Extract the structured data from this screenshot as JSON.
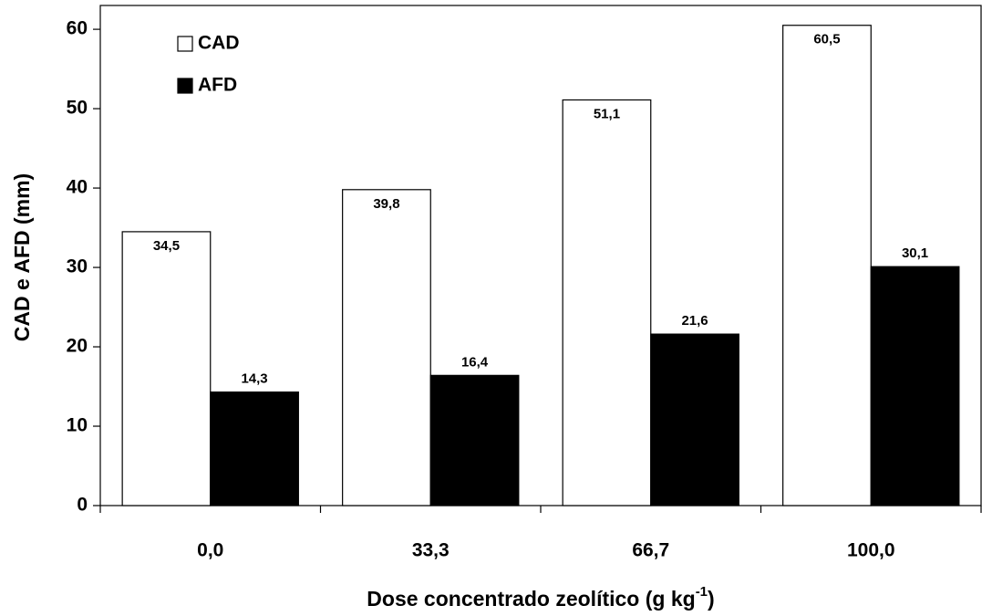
{
  "chart_data": {
    "type": "bar",
    "x_label": {
      "main": "Dose concentrado zeolítico (g kg",
      "superscript": "-1",
      "end": ")"
    },
    "y_label": "CAD e AFD (mm)",
    "categories": [
      "0,0",
      "33,3",
      "66,7",
      "100,0"
    ],
    "series": [
      {
        "name": "CAD",
        "color": "#ffffff",
        "values": [
          34.5,
          39.8,
          51.1,
          60.5
        ],
        "value_labels": [
          "34,5",
          "39,8",
          "51,1",
          "60,5"
        ]
      },
      {
        "name": "AFD",
        "color": "#000000",
        "values": [
          14.3,
          16.4,
          21.6,
          30.1
        ],
        "value_labels": [
          "14,3",
          "16,4",
          "21,6",
          "30,1"
        ]
      }
    ],
    "ylim": [
      0,
      63
    ],
    "yticks": [
      0,
      10,
      20,
      30,
      40,
      50,
      60
    ],
    "legend": "top-left",
    "grid": false
  }
}
